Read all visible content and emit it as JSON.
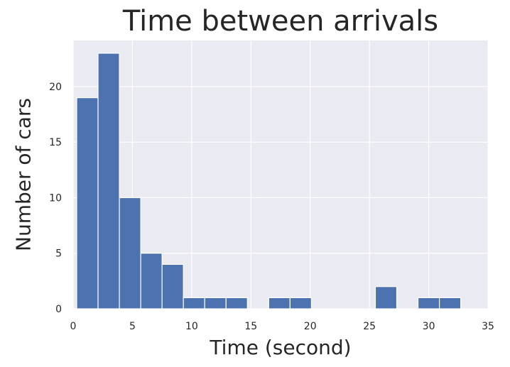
{
  "chart_data": {
    "type": "bar",
    "title": "Time between arrivals",
    "xlabel": "Time (second)",
    "ylabel": "Number of cars",
    "xlim": [
      0,
      35
    ],
    "ylim": [
      0,
      24.15
    ],
    "xticks": [
      0,
      5,
      10,
      15,
      20,
      25,
      30,
      35
    ],
    "yticks": [
      0,
      5,
      10,
      15,
      20
    ],
    "grid": true,
    "bin_width": 1.8,
    "bins": [
      {
        "start": 0.3,
        "value": 19
      },
      {
        "start": 2.1,
        "value": 23
      },
      {
        "start": 3.9,
        "value": 10
      },
      {
        "start": 5.7,
        "value": 5
      },
      {
        "start": 7.5,
        "value": 4
      },
      {
        "start": 9.3,
        "value": 1
      },
      {
        "start": 11.1,
        "value": 1
      },
      {
        "start": 12.9,
        "value": 1
      },
      {
        "start": 14.7,
        "value": 0
      },
      {
        "start": 16.5,
        "value": 1
      },
      {
        "start": 18.3,
        "value": 1
      },
      {
        "start": 20.1,
        "value": 0
      },
      {
        "start": 21.9,
        "value": 0
      },
      {
        "start": 23.7,
        "value": 0
      },
      {
        "start": 25.5,
        "value": 2
      },
      {
        "start": 27.3,
        "value": 0
      },
      {
        "start": 29.1,
        "value": 1
      },
      {
        "start": 30.9,
        "value": 1
      }
    ],
    "colors": {
      "bar": "#4c72b0",
      "plot_background": "#eaeaf2",
      "grid": "#ffffff",
      "text": "#262626"
    }
  }
}
